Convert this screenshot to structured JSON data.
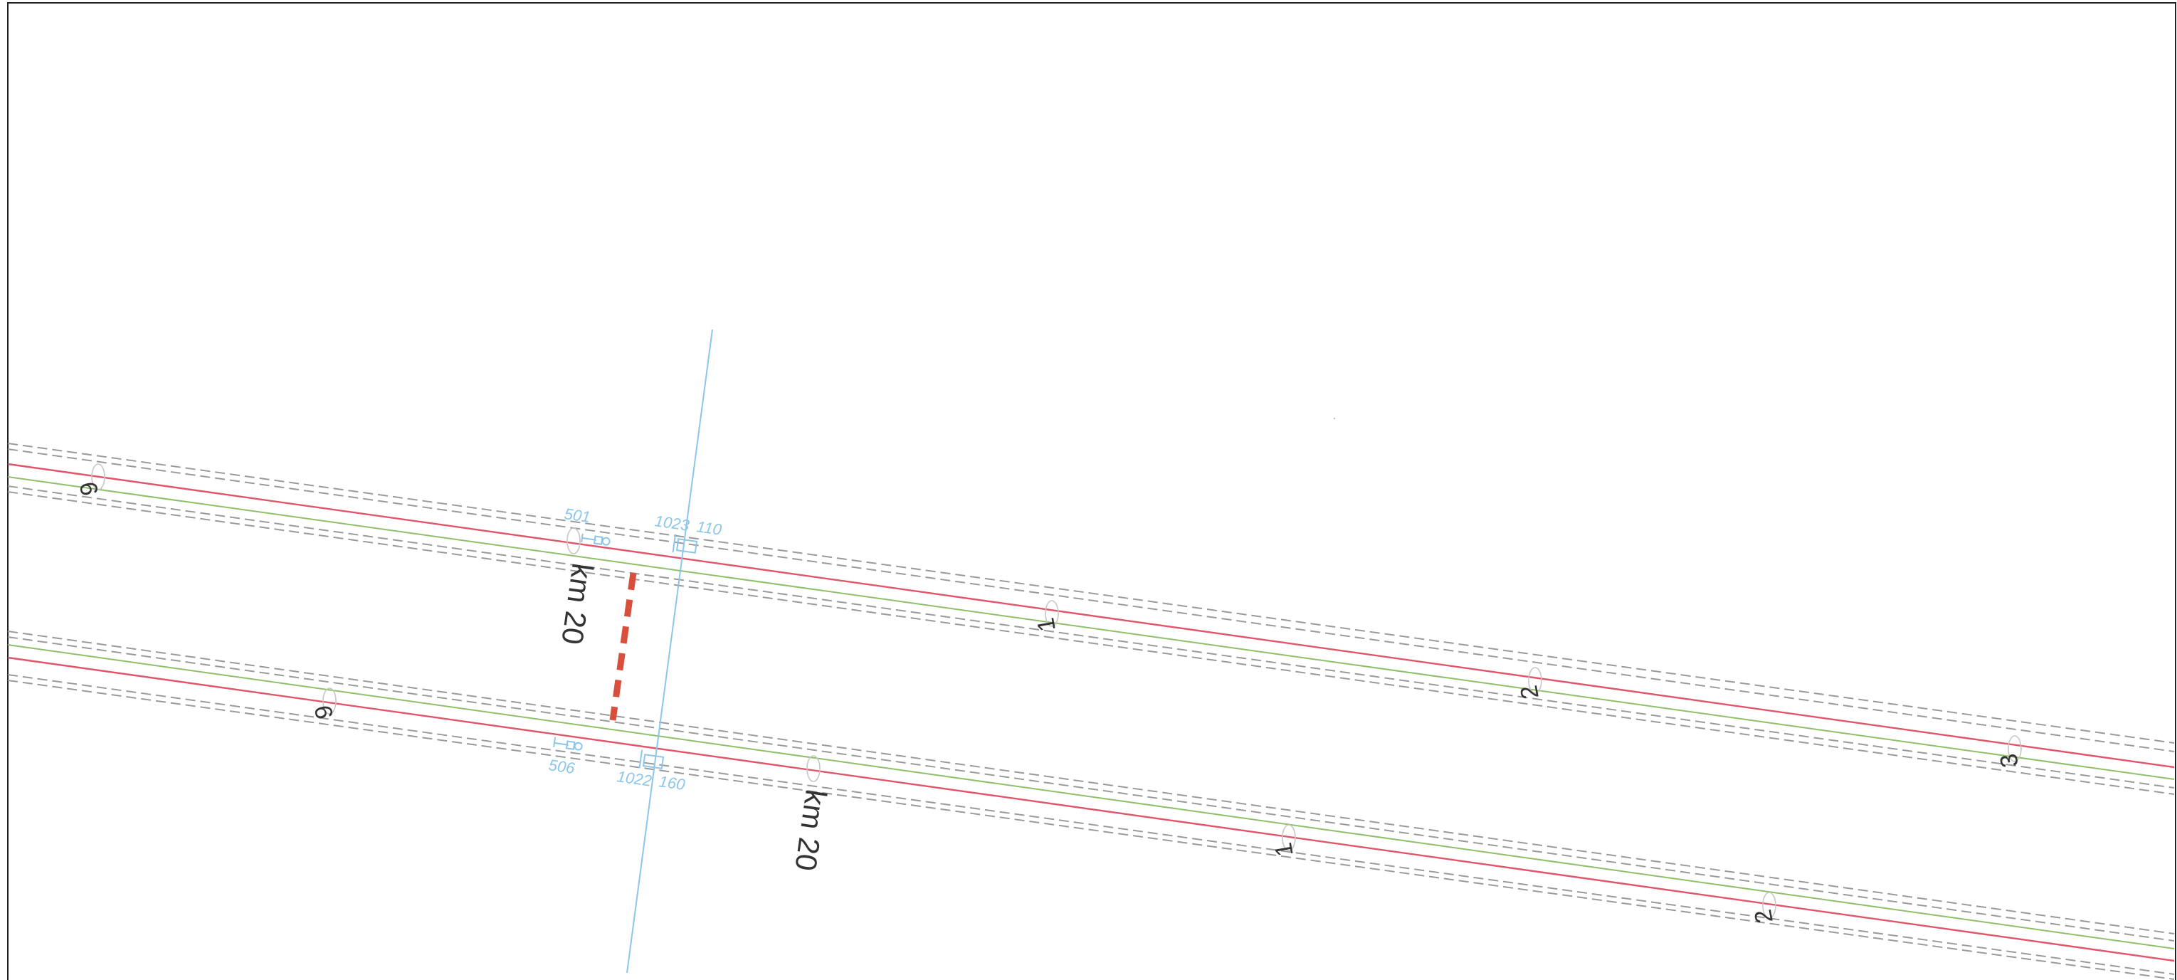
{
  "colors": {
    "frame": "#222222",
    "rail_edge_dashed": "#9a9a9a",
    "rail_red": "#e0556a",
    "rail_green": "#8fbf6a",
    "cable_blue": "#8cc6ea",
    "connector_red": "#d8503c",
    "text_dark": "#333333"
  },
  "track_upper": {
    "km_label": "km 20",
    "hm_labels": [
      "9",
      "1",
      "2",
      "3"
    ]
  },
  "track_lower": {
    "km_label": "km 20",
    "hm_labels": [
      "9",
      "1",
      "2"
    ]
  },
  "crossing": {
    "upper_signal": "501",
    "upper_box": "1023",
    "upper_value": "110",
    "lower_signal": "506",
    "lower_box": "1022",
    "lower_value": "160"
  },
  "icons": [
    "signal-icon",
    "junction-box-icon",
    "hectometer-marker-icon"
  ]
}
